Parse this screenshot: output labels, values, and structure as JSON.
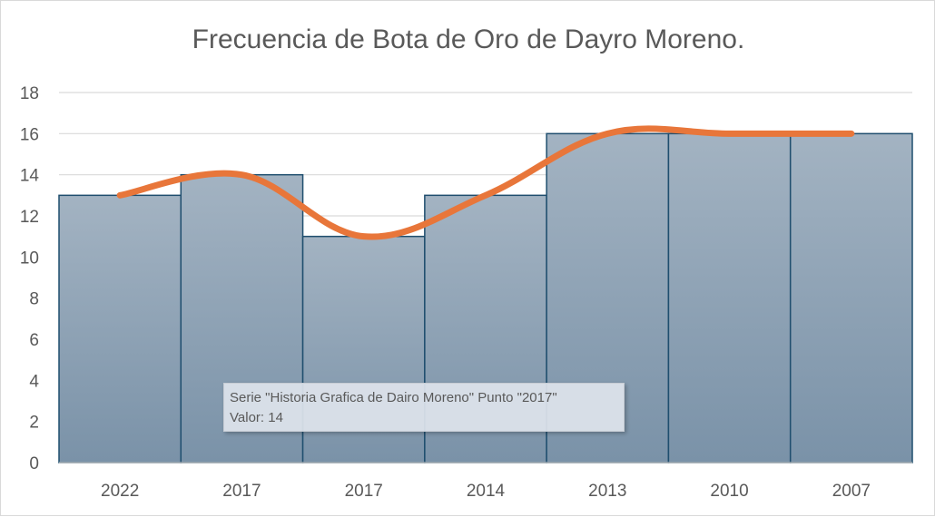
{
  "chart_data": {
    "type": "bar",
    "title": "Frecuencia de Bota de Oro de Dayro Moreno.",
    "xlabel": "",
    "ylabel": "",
    "ylim": [
      0,
      18
    ],
    "yticks": [
      0,
      2,
      4,
      6,
      8,
      10,
      12,
      14,
      16,
      18
    ],
    "grid": true,
    "categories": [
      "2022",
      "2017",
      "2017",
      "2014",
      "2013",
      "2010",
      "2007"
    ],
    "series": [
      {
        "name": "Historia Grafica de Dairo Moreno",
        "type": "bar",
        "values": [
          13,
          14,
          11,
          13,
          16,
          16,
          16
        ],
        "color": "#8a9fb2",
        "border": "#1f4e6e"
      },
      {
        "type": "line",
        "values": [
          13,
          14,
          11,
          13,
          16,
          16,
          16
        ],
        "color": "#e8763a"
      }
    ]
  },
  "tooltip": {
    "line1": "Serie \"Historia Grafica de Dairo Moreno\" Punto \"2017\"",
    "line2": "Valor: 14"
  }
}
